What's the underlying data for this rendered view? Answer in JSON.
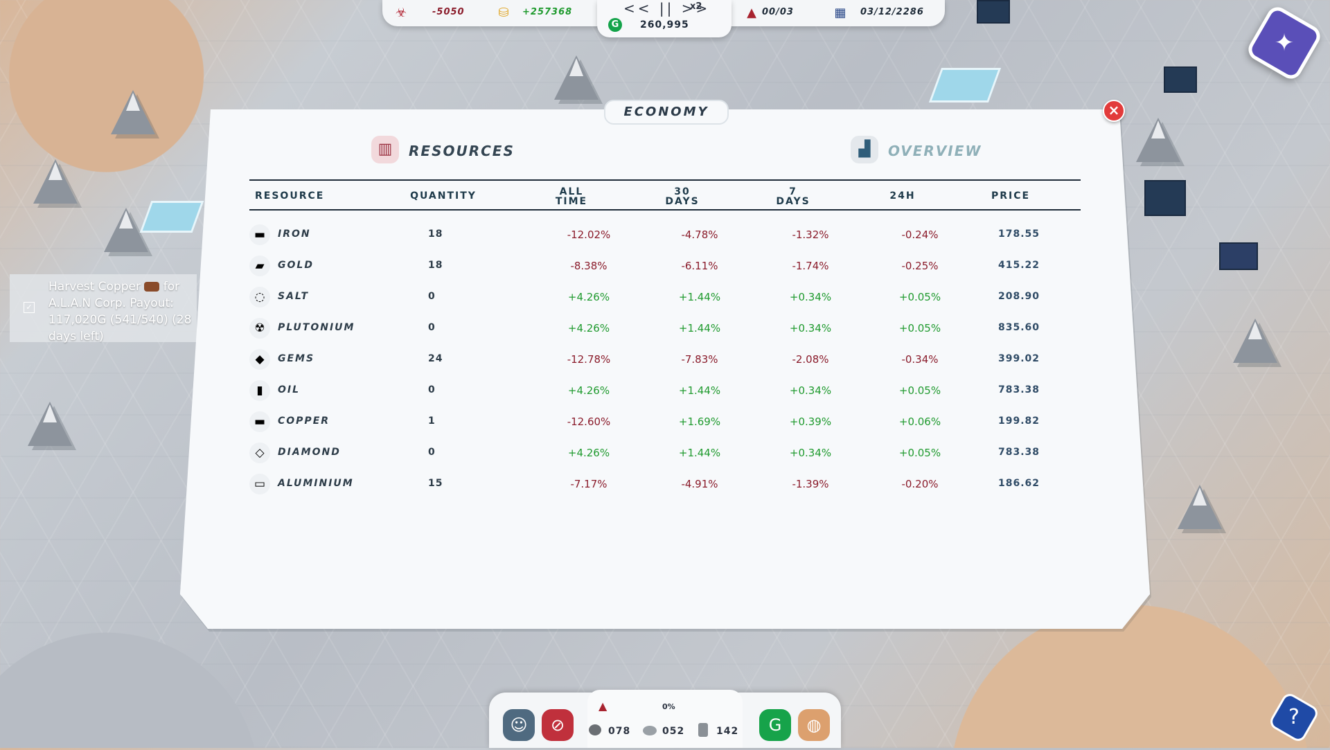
{
  "topbar": {
    "pollution": "-5050",
    "income": "+257368",
    "speed_controls": "<< || >>",
    "speed_multiplier": "x2",
    "money": "260,995",
    "rockets": "00/03",
    "date": "03/12/2286"
  },
  "panel": {
    "title": "ECONOMY",
    "tab_resources": "RESOURCES",
    "tab_overview": "OVERVIEW",
    "columns": {
      "resource": "RESOURCE",
      "quantity": "QUANTITY",
      "all_time_1": "ALL",
      "all_time_2": "TIME",
      "days30_1": "30",
      "days30_2": "DAYS",
      "days7_1": "7",
      "days7_2": "DAYS",
      "h24": "24H",
      "price": "PRICE"
    },
    "rows": [
      {
        "name": "IRON",
        "icon": "iron-icon",
        "glyph": "▬",
        "qty": "18",
        "all": "-12.02%",
        "d30": "-4.78%",
        "d7": "-1.32%",
        "h24": "-0.24%",
        "price": "178.55"
      },
      {
        "name": "GOLD",
        "icon": "gold-icon",
        "glyph": "▰",
        "qty": "18",
        "all": "-8.38%",
        "d30": "-6.11%",
        "d7": "-1.74%",
        "h24": "-0.25%",
        "price": "415.22"
      },
      {
        "name": "SALT",
        "icon": "salt-icon",
        "glyph": "◌",
        "qty": "0",
        "all": "+4.26%",
        "d30": "+1.44%",
        "d7": "+0.34%",
        "h24": "+0.05%",
        "price": "208.90"
      },
      {
        "name": "PLUTONIUM",
        "icon": "plutonium-icon",
        "glyph": "☢",
        "qty": "0",
        "all": "+4.26%",
        "d30": "+1.44%",
        "d7": "+0.34%",
        "h24": "+0.05%",
        "price": "835.60"
      },
      {
        "name": "GEMS",
        "icon": "gems-icon",
        "glyph": "◆",
        "qty": "24",
        "all": "-12.78%",
        "d30": "-7.83%",
        "d7": "-2.08%",
        "h24": "-0.34%",
        "price": "399.02"
      },
      {
        "name": "OIL",
        "icon": "oil-icon",
        "glyph": "▮",
        "qty": "0",
        "all": "+4.26%",
        "d30": "+1.44%",
        "d7": "+0.34%",
        "h24": "+0.05%",
        "price": "783.38"
      },
      {
        "name": "COPPER",
        "icon": "copper-icon",
        "glyph": "▬",
        "qty": "1",
        "all": "-12.60%",
        "d30": "+1.69%",
        "d7": "+0.39%",
        "h24": "+0.06%",
        "price": "199.82"
      },
      {
        "name": "DIAMOND",
        "icon": "diamond-icon",
        "glyph": "◇",
        "qty": "0",
        "all": "+4.26%",
        "d30": "+1.44%",
        "d7": "+0.34%",
        "h24": "+0.05%",
        "price": "783.38"
      },
      {
        "name": "ALUMINIUM",
        "icon": "aluminium-icon",
        "glyph": "▭",
        "qty": "15",
        "all": "-7.17%",
        "d30": "-4.91%",
        "d7": "-1.39%",
        "h24": "-0.20%",
        "price": "186.62"
      }
    ]
  },
  "quest": {
    "text_before_icon": "Harvest Copper",
    "text_after_icon": "for A.L.A.N Corp. Payout: 117,020G (541/540) (28 days left)"
  },
  "bottombar": {
    "progress": "0%",
    "stat1": "078",
    "stat2": "052",
    "stat3": "142"
  },
  "colors": {
    "negative": "#8a1b2a",
    "positive": "#1f9a2e",
    "accent": "#1e3a4a"
  }
}
